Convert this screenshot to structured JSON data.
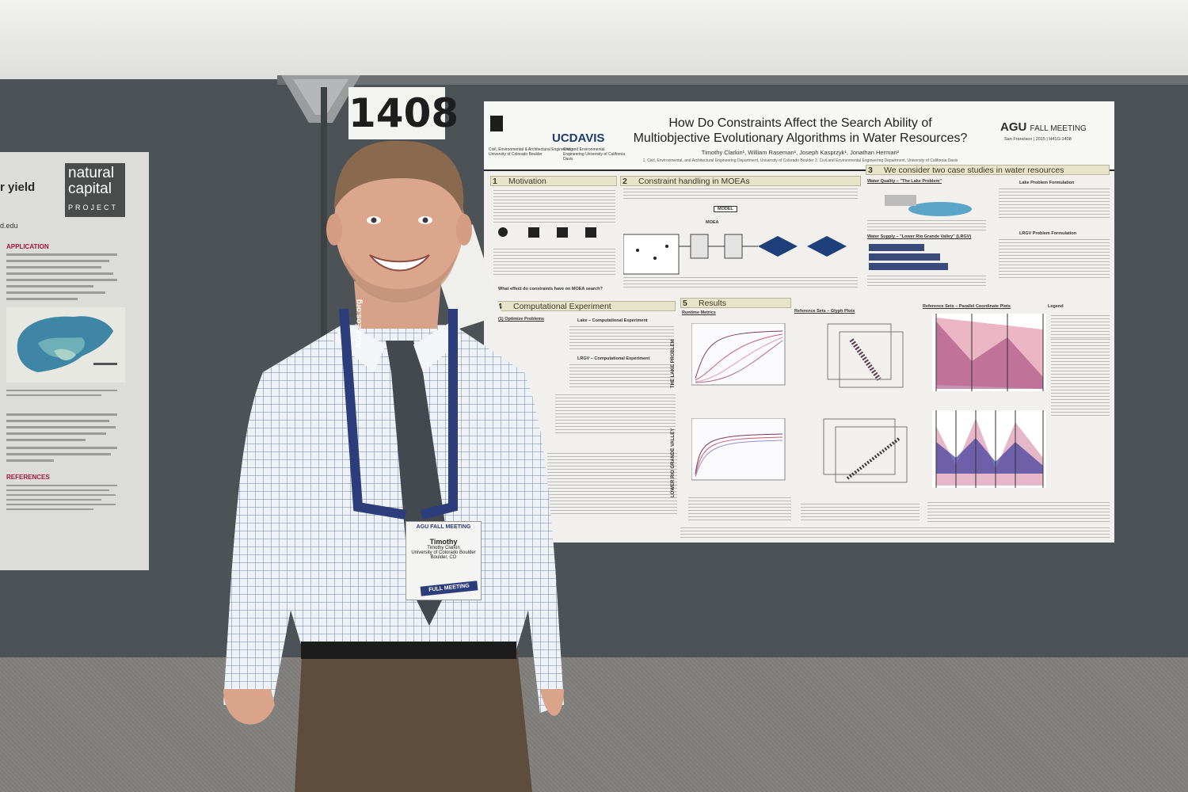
{
  "scene": {
    "booth_number": "1408"
  },
  "left_poster": {
    "title_fragment": "r yield",
    "brand_line1": "natural",
    "brand_line2": "capital",
    "brand_line3": "PROJECT",
    "url_fragment": "d.edu",
    "section1": "APPLICATION",
    "section2": "REFERENCES"
  },
  "poster": {
    "institution1": "Civil, Environmental & Architectural Engineering University of Colorado Boulder",
    "institution2_logo": "UCDAVIS",
    "institution2": "Civil and Environmental Engineering University of California Davis",
    "title_line1": "How Do Constraints Affect the Search Ability of",
    "title_line2": "Multiobjective Evolutionary Algorithms in Water Resources?",
    "authors": "Timothy Clarkin¹, William Raseman¹, Joseph Kasprzyk¹, Jonathan Herman²",
    "affiliations": "1. Civil, Environmental, and Architectural Engineering Department, University of Colorado Boulder 2. Civil and Environmental Engineering Department, University of California Davis",
    "agu_logo": "AGU",
    "agu_meeting": "FALL MEETING",
    "agu_sub": "San Francisco | 2015 | H41G-1408",
    "sections": [
      {
        "num": "1",
        "title": "Motivation"
      },
      {
        "num": "2",
        "title": "Constraint handling in MOEAs"
      },
      {
        "num": "3",
        "title": "We consider two case studies in water resources"
      },
      {
        "num": "4",
        "title": "Computational Experiment"
      },
      {
        "num": "5",
        "title": "Results"
      }
    ],
    "motivation_question": "What effect do constraints have on MOEA search?",
    "model_label": "MODEL",
    "moea_label": "MOEA",
    "water_quality": "Water Quality – \"The Lake Problem\"",
    "water_supply": "Water Supply – \"Lower Rio Grande Valley\" (LRGV)",
    "lake_formulation": "Lake Problem Formulation",
    "lrgv_formulation": "LRGV Problem Formulation",
    "optimize_problems": "(1) Optimize Problems",
    "lake_experiment": "Lake – Computational Experiment",
    "lrgv_experiment": "LRGV – Computational Experiment",
    "runtime_metrics": "Runtime Metrics",
    "glyph_plots": "Reference Sets – Glyph Plots",
    "parallel_plots": "Reference Sets – Parallel Coordinate Plots",
    "lake_vertical": "THE LAKE PROBLEM",
    "lrgv_vertical": "LOWER RIO GRANDE VALLEY",
    "legend": "Legend",
    "colors": {
      "section_bar": "#e7e4c9",
      "header_rule": "#2a2a2a",
      "pc_pink": "#e9a7b9",
      "pc_blue": "#7d7bc2"
    }
  },
  "badge": {
    "event": "AGU FALL MEETING",
    "name": "Timothy",
    "full_name": "Timothy Clarkin",
    "org": "University of Colorado Boulder",
    "city": "Boulder, CO",
    "ribbon": "FULL MEETING"
  },
  "lanyard_text": "AGU Eos.org"
}
